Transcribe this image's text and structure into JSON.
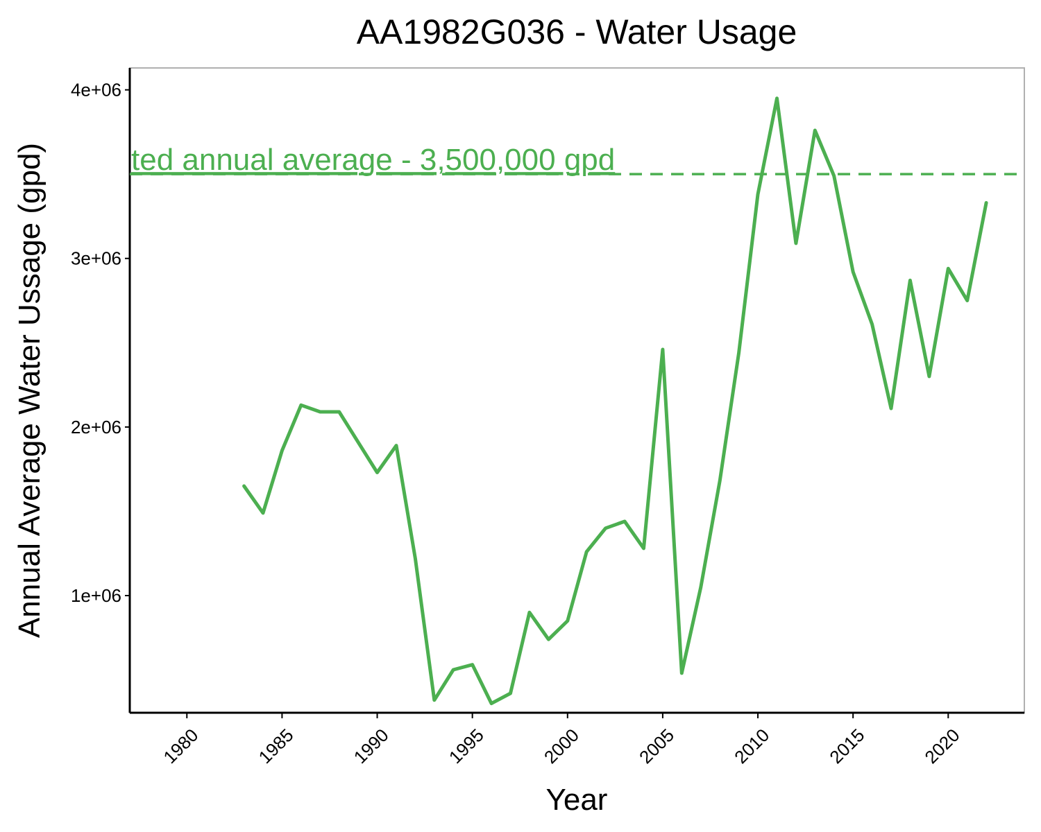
{
  "chart_data": {
    "type": "line",
    "title": "AA1982G036 - Water Usage",
    "xlabel": "Year",
    "ylabel": "Annual Average Water Ussage (gpd)",
    "xlim": [
      1977,
      2024
    ],
    "ylim": [
      305000,
      4130000
    ],
    "x_ticks": [
      1980,
      1985,
      1990,
      1995,
      2000,
      2005,
      2010,
      2015,
      2020
    ],
    "x_tick_labels": [
      "1980",
      "1985",
      "1990",
      "1995",
      "2000",
      "2005",
      "2010",
      "2015",
      "2020"
    ],
    "y_ticks": [
      1000000,
      2000000,
      3000000,
      4000000
    ],
    "y_tick_labels": [
      "1e+06",
      "2e+06",
      "3e+06",
      "4e+06"
    ],
    "grid": false,
    "series": [
      {
        "color": "#4caf50",
        "x": [
          1983,
          1984,
          1985,
          1986,
          1987,
          1988,
          1989,
          1990,
          1991,
          1992,
          1993,
          1994,
          1995,
          1996,
          1997,
          1998,
          1999,
          2000,
          2001,
          2002,
          2003,
          2004,
          2005,
          2006,
          2007,
          2008,
          2009,
          2010,
          2011,
          2012,
          2013,
          2014,
          2015,
          2016,
          2017,
          2018,
          2019,
          2020,
          2021,
          2022
        ],
        "y": [
          1650000,
          1490000,
          1860000,
          2130000,
          2090000,
          2090000,
          1910000,
          1730000,
          1890000,
          1220000,
          380000,
          560000,
          590000,
          360000,
          420000,
          900000,
          740000,
          850000,
          1260000,
          1400000,
          1440000,
          1280000,
          2460000,
          540000,
          1050000,
          1680000,
          2440000,
          3380000,
          3950000,
          3090000,
          3760000,
          3490000,
          2920000,
          2610000,
          2110000,
          2870000,
          2300000,
          2940000,
          2750000,
          3330000
        ]
      }
    ],
    "reference_line": {
      "y": 3500000,
      "label": "ted annual average - 3,500,000 gpd",
      "color": "#4caf50",
      "style": "dashed"
    }
  }
}
